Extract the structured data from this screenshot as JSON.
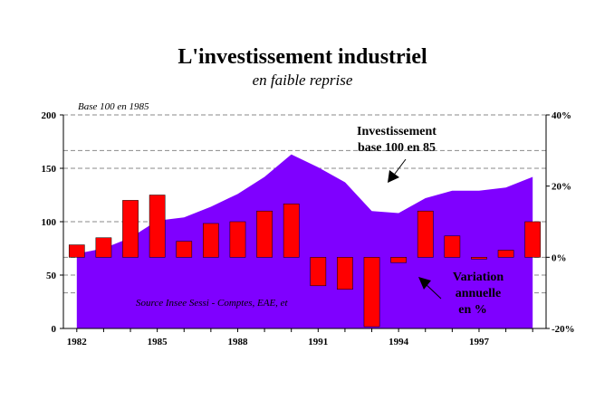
{
  "chart_data": {
    "type": "area+bar",
    "title": "L'investissement industriel",
    "subtitle": "en faible reprise",
    "base_note": "Base 100 en 1985",
    "source": "Source Insee Sessi - Comptes, EAE, et",
    "annotation_area": [
      "Investissement",
      "base 100 en 85"
    ],
    "annotation_bars": [
      "Variation",
      "annuelle",
      "en %"
    ],
    "x": [
      1982,
      1983,
      1984,
      1985,
      1986,
      1987,
      1988,
      1989,
      1990,
      1991,
      1992,
      1993,
      1994,
      1995,
      1996,
      1997,
      1998,
      1999
    ],
    "x_tick_labels": [
      "1982",
      "1985",
      "1988",
      "1991",
      "1994",
      "1997"
    ],
    "x_tick_values": [
      1982,
      1985,
      1988,
      1991,
      1994,
      1997
    ],
    "series": [
      {
        "kind": "area",
        "axis": "left",
        "color": "#7f00ff",
        "values": [
          70,
          75,
          85,
          101,
          104,
          114,
          126,
          142,
          163,
          151,
          137,
          110,
          108,
          122,
          129,
          129,
          132,
          142
        ]
      },
      {
        "kind": "bar",
        "axis": "right",
        "color": "#ff0000",
        "values": [
          3.5,
          5.5,
          16,
          17.5,
          4.5,
          9.5,
          10,
          13,
          15,
          -8,
          -9,
          -19.5,
          -1.5,
          13,
          6,
          -0.5,
          2,
          10
        ]
      }
    ],
    "y_left": {
      "ylim": [
        0,
        200
      ],
      "ticks": [
        "0",
        "50",
        "100",
        "150",
        "200"
      ],
      "tick_values": [
        0,
        50,
        100,
        150,
        200
      ]
    },
    "y_right": {
      "ylim": [
        -20,
        40
      ],
      "ticks": [
        "-20%",
        "0%",
        "20%",
        "40%"
      ],
      "tick_values": [
        -20,
        0,
        20,
        40
      ]
    },
    "grid": true
  }
}
